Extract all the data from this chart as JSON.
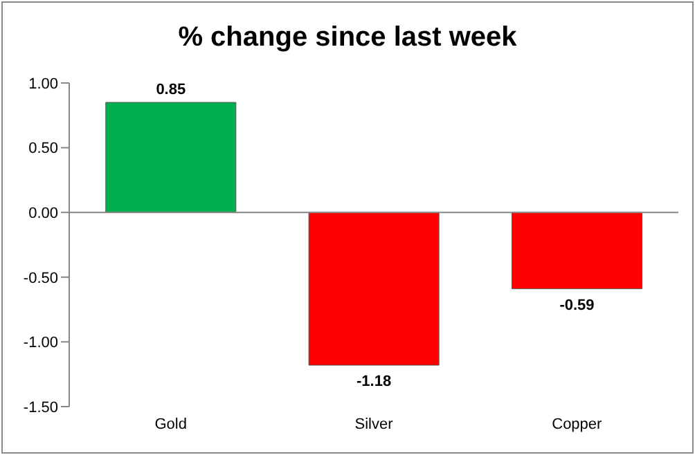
{
  "chart_data": {
    "type": "bar",
    "title": "% change since last week",
    "categories": [
      "Gold",
      "Silver",
      "Copper"
    ],
    "values": [
      0.85,
      -1.18,
      -0.59
    ],
    "colors": [
      "#00b050",
      "#ff0000",
      "#ff0000"
    ],
    "ylim": [
      -1.5,
      1
    ],
    "yticks": [
      {
        "value": -1.5,
        "label": "-1.50"
      },
      {
        "value": -1,
        "label": "-1.00"
      },
      {
        "value": -0.5,
        "label": "-0.50"
      },
      {
        "value": 0,
        "label": "0.00"
      },
      {
        "value": 0.5,
        "label": "0.50"
      },
      {
        "value": 1,
        "label": "1.00"
      }
    ],
    "ref_lines": [
      {
        "axis": "y",
        "value": 0,
        "color": "#868686"
      }
    ],
    "data_labels": true
  }
}
